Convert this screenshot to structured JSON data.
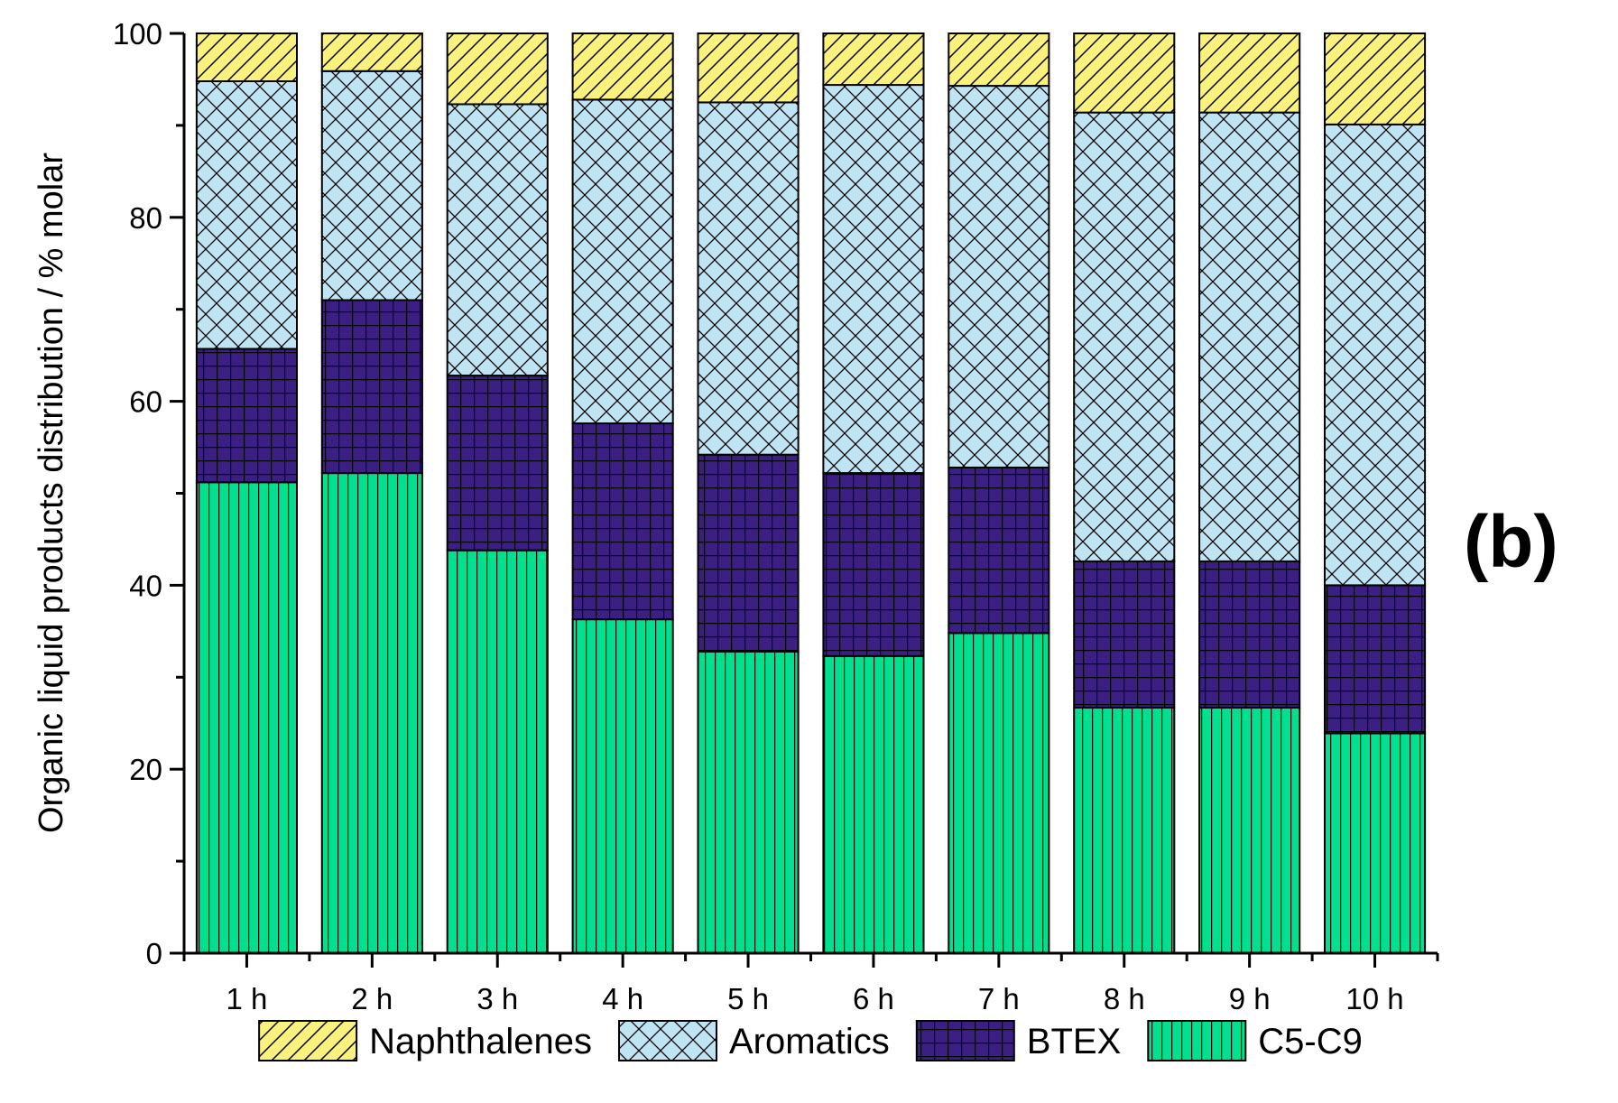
{
  "chart_data": {
    "type": "bar",
    "stacked": true,
    "categories": [
      "1 h",
      "2 h",
      "3 h",
      "4 h",
      "5 h",
      "6 h",
      "7 h",
      "8 h",
      "9 h",
      "10 h"
    ],
    "series": [
      {
        "name": "C5-C9",
        "color": "#00e08e",
        "pattern": "vertical",
        "values": [
          51.2,
          52.2,
          43.8,
          36.3,
          32.8,
          32.3,
          34.8,
          26.7,
          26.7,
          23.9
        ]
      },
      {
        "name": "BTEX",
        "color": "#3b1f82",
        "pattern": "grid",
        "values": [
          14.5,
          18.8,
          19.0,
          21.3,
          21.4,
          19.9,
          18.0,
          15.9,
          15.9,
          16.1
        ]
      },
      {
        "name": "Aromatics",
        "color": "#bfe4f4",
        "pattern": "crosshatch",
        "values": [
          29.1,
          24.9,
          29.5,
          35.2,
          38.3,
          42.2,
          41.5,
          48.8,
          48.8,
          50.1
        ]
      },
      {
        "name": "Naphthalenes",
        "color": "#fbf27e",
        "pattern": "diagonal",
        "values": [
          5.2,
          4.1,
          7.7,
          7.2,
          7.5,
          5.6,
          5.7,
          8.6,
          8.6,
          9.9
        ]
      }
    ],
    "legend_order": [
      "Naphthalenes",
      "Aromatics",
      "BTEX",
      "C5-C9"
    ],
    "legend_position": "bottom",
    "title": "",
    "xlabel": "",
    "ylabel": "Organic liquid products distribution / % molar",
    "ylim": [
      0,
      100
    ],
    "yticks": [
      0,
      20,
      40,
      60,
      80,
      100
    ],
    "panel_label": "(b)",
    "grid": false
  }
}
